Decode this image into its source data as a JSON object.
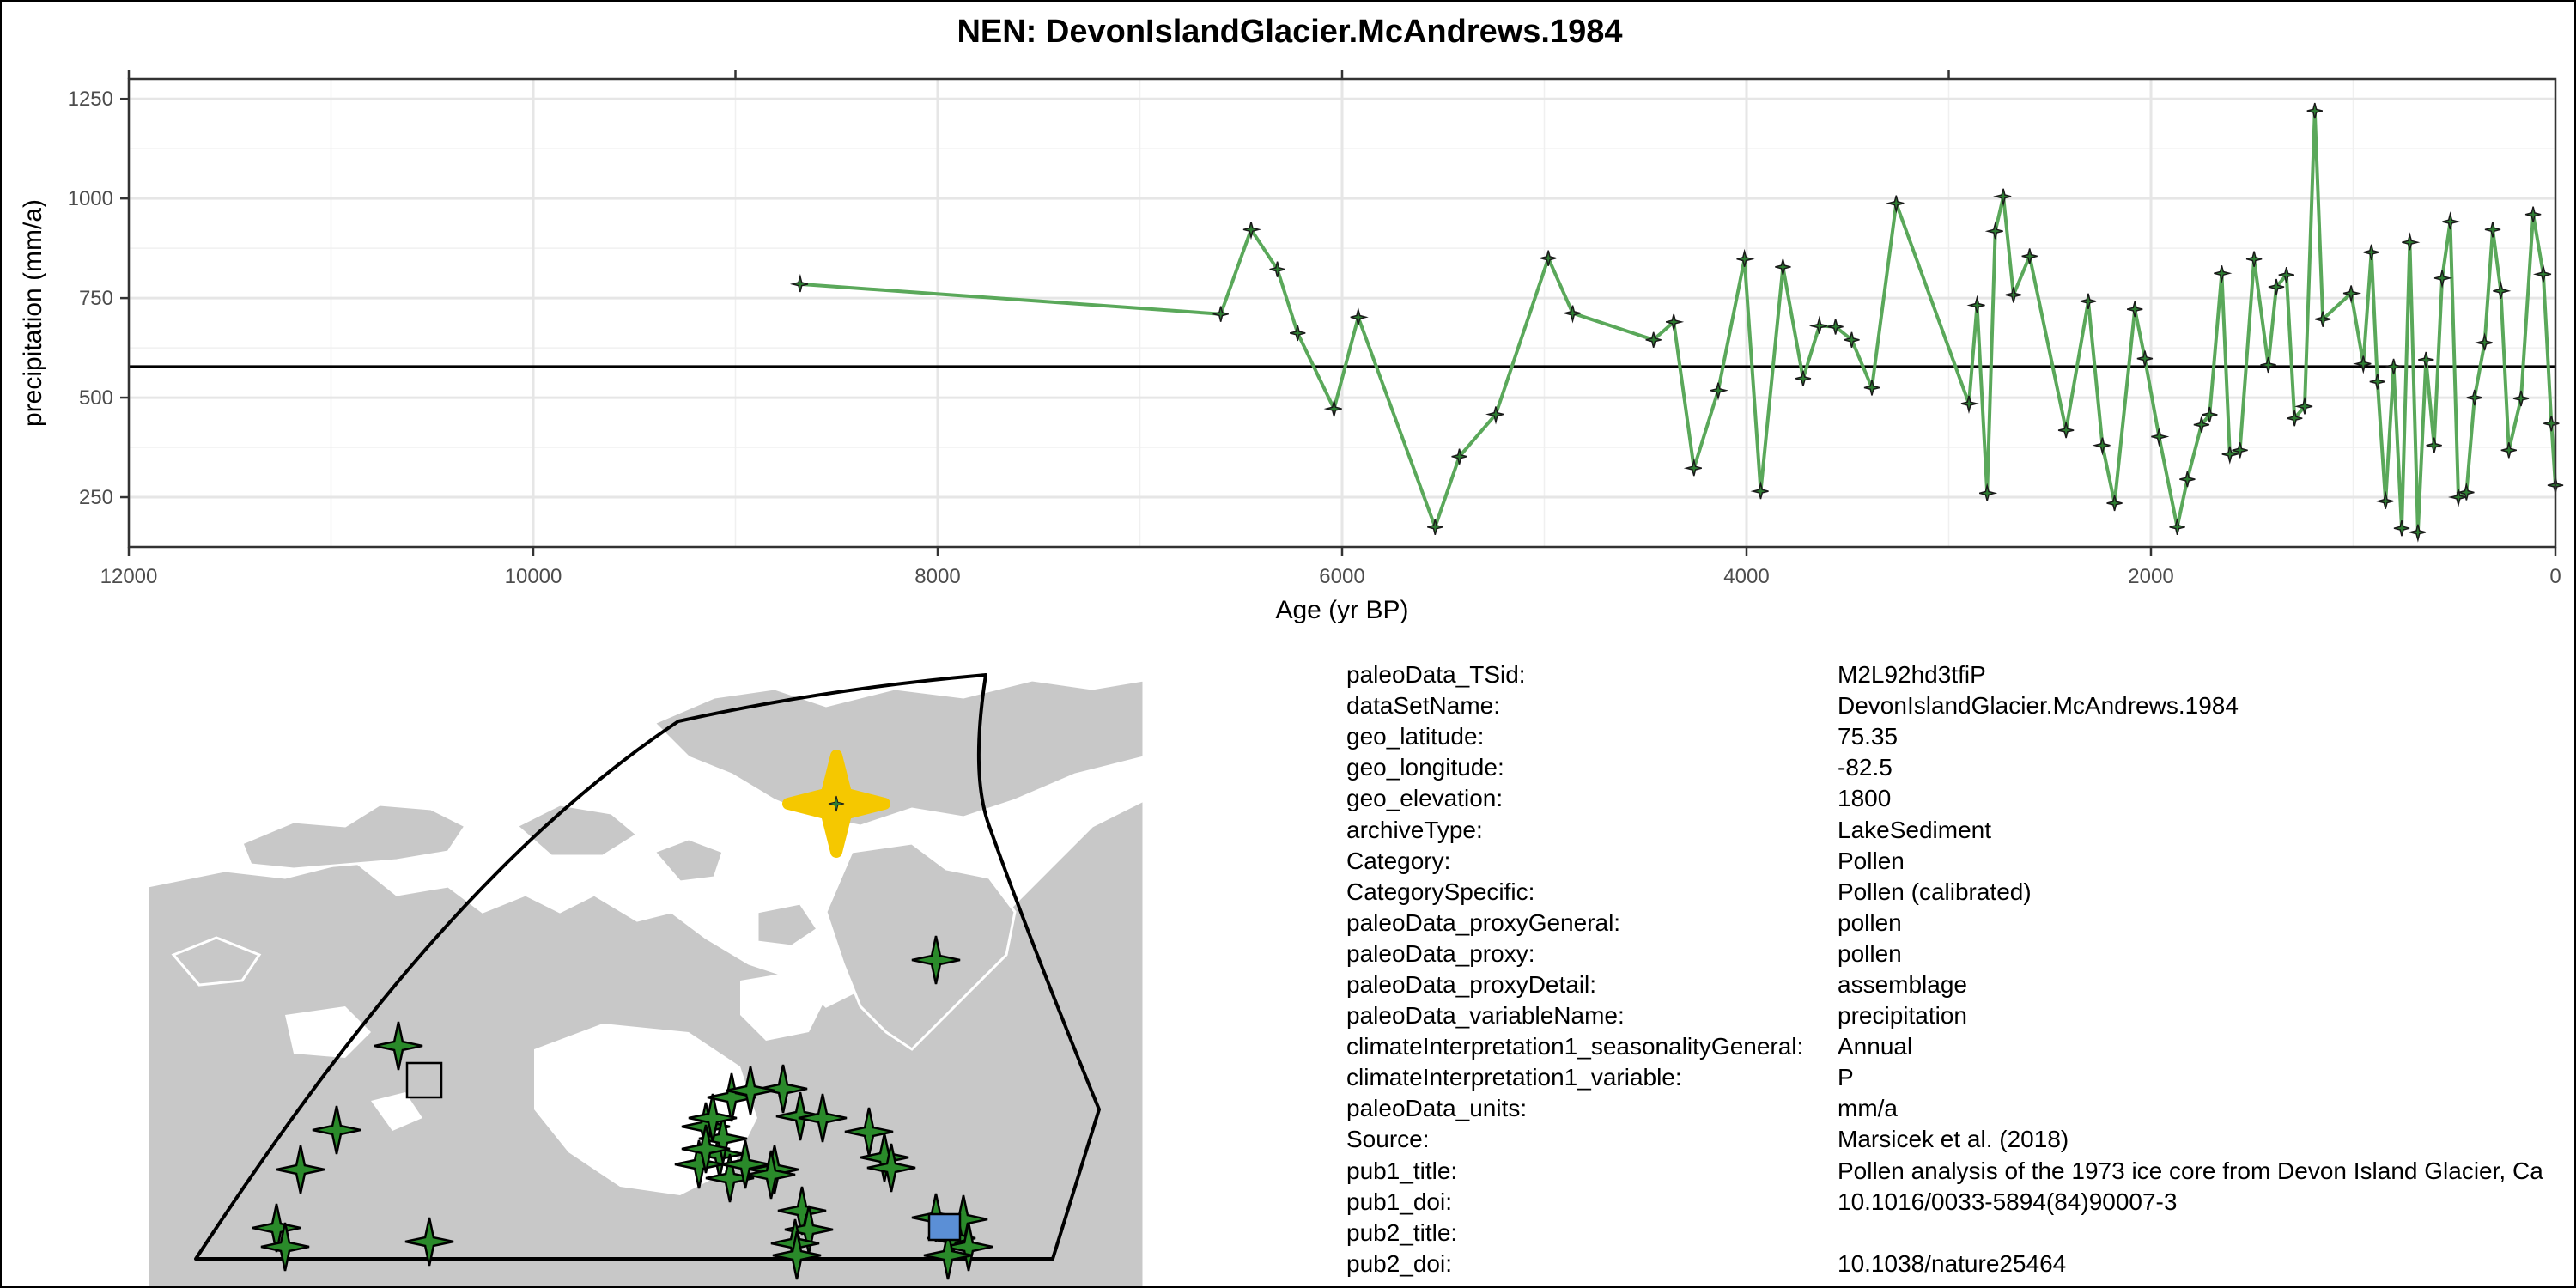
{
  "title": "NEN: DevonIslandGlacier.McAndrews.1984",
  "colors": {
    "line": "#5aa85a",
    "marker_fill": "#2e7d32",
    "marker_stroke": "#1a1a1a",
    "land": "#c8c8c8",
    "site_star": "#2a8a2a",
    "highlight_star": "#f5c800",
    "square_gray": "#c8c8c8",
    "square_blue": "#5b8fd6"
  },
  "chart_data": {
    "type": "line",
    "title": "NEN: DevonIslandGlacier.McAndrews.1984",
    "xlabel": "Age (yr BP)",
    "ylabel": "precipitation (mm/a)",
    "xlim": [
      12000,
      0
    ],
    "x_reversed": true,
    "ylim": [
      125,
      1300
    ],
    "x_ticks": [
      12000,
      10000,
      8000,
      6000,
      4000,
      2000,
      0
    ],
    "y_ticks": [
      250,
      500,
      750,
      1000,
      1250
    ],
    "reference_line": 578,
    "grid": true,
    "series": [
      {
        "x": [
          8680,
          6600,
          6450,
          6320,
          6220,
          6040,
          5920,
          5540,
          5420,
          5240,
          4980,
          4860,
          4460,
          4360,
          4260,
          4140,
          4010,
          3930,
          3820,
          3720,
          3640,
          3560,
          3480,
          3380,
          3260,
          2900,
          2860,
          2810,
          2770,
          2730,
          2680,
          2600,
          2420,
          2310,
          2240,
          2180,
          2080,
          2030,
          1960,
          1870,
          1820,
          1750,
          1710,
          1650,
          1610,
          1560,
          1490,
          1420,
          1380,
          1330,
          1290,
          1240,
          1190,
          1150,
          1010,
          950,
          910,
          880,
          840,
          800,
          760,
          720,
          680,
          640,
          600,
          560,
          520,
          480,
          440,
          400,
          350,
          310,
          270,
          230,
          170,
          110,
          60,
          20,
          0
        ],
        "y": [
          785,
          710,
          922,
          822,
          662,
          472,
          702,
          175,
          352,
          458,
          850,
          712,
          645,
          690,
          323,
          518,
          848,
          265,
          828,
          548,
          680,
          678,
          645,
          525,
          988,
          485,
          732,
          260,
          918,
          1005,
          758,
          855,
          418,
          742,
          380,
          235,
          722,
          598,
          402,
          175,
          295,
          432,
          457,
          812,
          358,
          368,
          848,
          582,
          778,
          808,
          448,
          478,
          1220,
          697,
          762,
          585,
          865,
          540,
          240,
          578,
          172,
          890,
          162,
          595,
          380,
          800,
          942,
          250,
          262,
          500,
          638,
          922,
          768,
          368,
          498,
          960,
          810,
          435,
          280
        ]
      }
    ]
  },
  "map": {
    "region_label": "NEN"
  },
  "metadata": [
    {
      "key": "paleoData_TSid:",
      "value": "M2L92hd3tfiP"
    },
    {
      "key": "dataSetName:",
      "value": "DevonIslandGlacier.McAndrews.1984"
    },
    {
      "key": "geo_latitude:",
      "value": "75.35"
    },
    {
      "key": "geo_longitude:",
      "value": "-82.5"
    },
    {
      "key": "geo_elevation:",
      "value": "1800"
    },
    {
      "key": "archiveType:",
      "value": "LakeSediment"
    },
    {
      "key": "Category:",
      "value": "Pollen"
    },
    {
      "key": "CategorySpecific:",
      "value": "Pollen (calibrated)"
    },
    {
      "key": "paleoData_proxyGeneral:",
      "value": "pollen"
    },
    {
      "key": "paleoData_proxy:",
      "value": "pollen"
    },
    {
      "key": "paleoData_proxyDetail:",
      "value": "assemblage"
    },
    {
      "key": "paleoData_variableName:",
      "value": "precipitation"
    },
    {
      "key": "climateInterpretation1_seasonalityGeneral:",
      "value": "Annual"
    },
    {
      "key": "climateInterpretation1_variable:",
      "value": "P"
    },
    {
      "key": "paleoData_units:",
      "value": "mm/a"
    },
    {
      "key": "Source:",
      "value": "Marsicek et al. (2018)"
    },
    {
      "key": "pub1_title:",
      "value": "Pollen analysis of the 1973 ice core from Devon Island Glacier, Ca"
    },
    {
      "key": "pub1_doi:",
      "value": "10.1016/0033-5894(84)90007-3"
    },
    {
      "key": "pub2_title:",
      "value": ""
    },
    {
      "key": "pub2_doi:",
      "value": "10.1038/nature25464"
    }
  ]
}
